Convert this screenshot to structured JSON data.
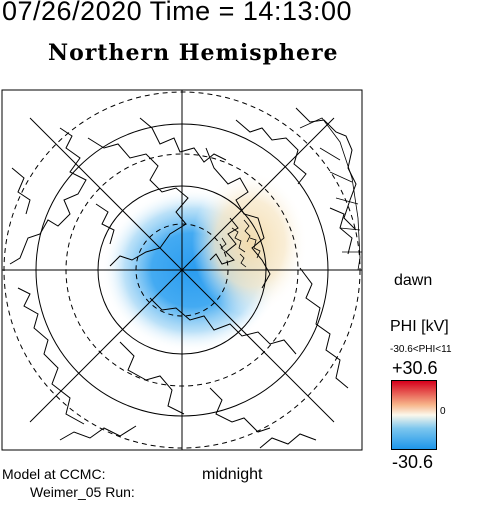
{
  "header": {
    "date_time": "07/26/2020 Time = 14:13:00",
    "hemisphere": "Northern Hemisphere"
  },
  "map": {
    "projection": "polar",
    "pole": "north",
    "contours": {
      "negative_center_color": "#2a9cf0",
      "positive_center_color": "#f3dfb6"
    }
  },
  "labels": {
    "dawn": "dawn",
    "midnight": "midnight"
  },
  "colorbar": {
    "title": "PHI [kV]",
    "range_text": "-30.6<PHI<11",
    "max_label": "+30.6",
    "mid_label": "0",
    "min_label": "-30.6",
    "colors": [
      "#d6001c",
      "#f7b58a",
      "#fbf8ec",
      "#7cc6ee",
      "#1e96ea"
    ]
  },
  "footer": {
    "model_line": "Model at CCMC:",
    "run_line": "Weimer_05 Run:"
  }
}
